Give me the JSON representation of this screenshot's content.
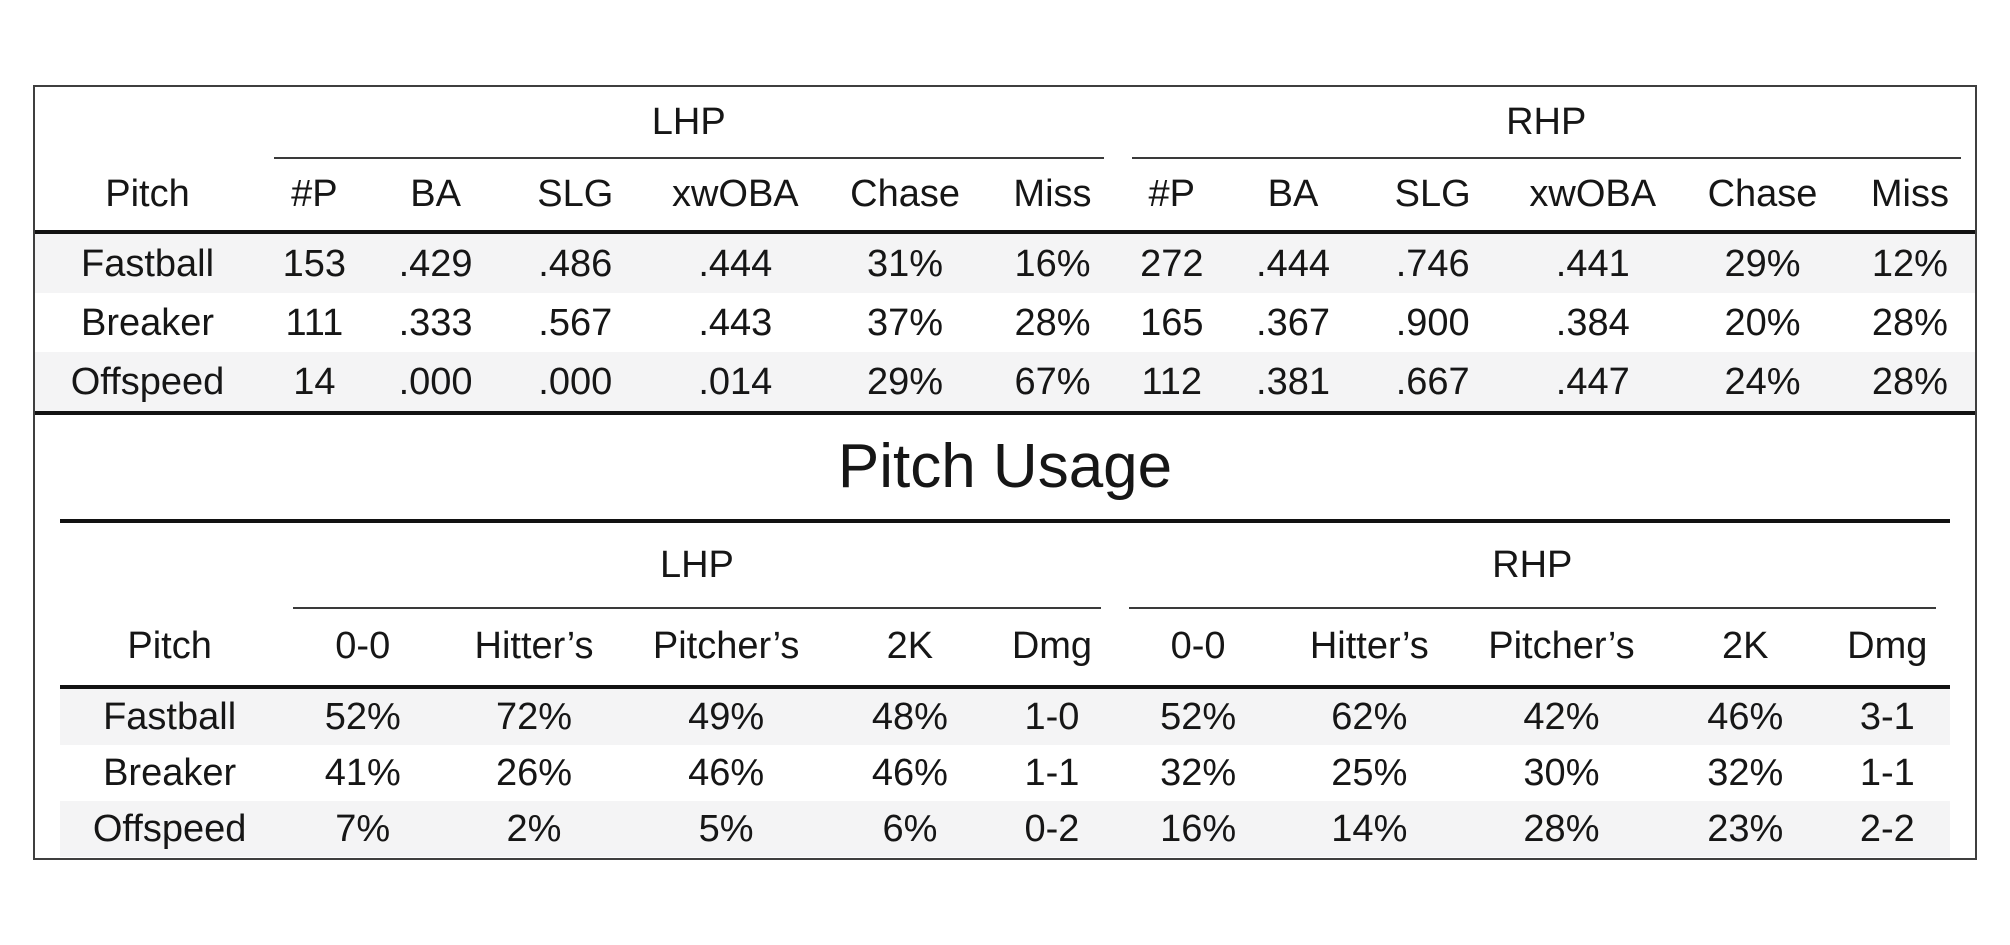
{
  "palette": {
    "text": "#161616",
    "band": "#f4f4f5",
    "rule": "#121212",
    "border": "#3f3f3f",
    "background": "#ffffff"
  },
  "stats_table": {
    "groups": [
      "LHP",
      "RHP"
    ],
    "pitch_header": "Pitch",
    "columns": [
      "#P",
      "BA",
      "SLG",
      "xwOBA",
      "Chase",
      "Miss"
    ],
    "rows": [
      {
        "pitch": "Fastball",
        "lhp": [
          "153",
          ".429",
          ".486",
          ".444",
          "31%",
          "16%"
        ],
        "rhp": [
          "272",
          ".444",
          ".746",
          ".441",
          "29%",
          "12%"
        ]
      },
      {
        "pitch": "Breaker",
        "lhp": [
          "111",
          ".333",
          ".567",
          ".443",
          "37%",
          "28%"
        ],
        "rhp": [
          "165",
          ".367",
          ".900",
          ".384",
          "20%",
          "28%"
        ]
      },
      {
        "pitch": "Offspeed",
        "lhp": [
          "14",
          ".000",
          ".000",
          ".014",
          "29%",
          "67%"
        ],
        "rhp": [
          "112",
          ".381",
          ".667",
          ".447",
          "24%",
          "28%"
        ]
      }
    ]
  },
  "usage_table": {
    "title": "Pitch Usage",
    "groups": [
      "LHP",
      "RHP"
    ],
    "pitch_header": "Pitch",
    "columns": [
      "0-0",
      "Hitter’s",
      "Pitcher’s",
      "2K",
      "Dmg"
    ],
    "rows": [
      {
        "pitch": "Fastball",
        "lhp": [
          "52%",
          "72%",
          "49%",
          "48%",
          "1-0"
        ],
        "rhp": [
          "52%",
          "62%",
          "42%",
          "46%",
          "3-1"
        ]
      },
      {
        "pitch": "Breaker",
        "lhp": [
          "41%",
          "26%",
          "46%",
          "46%",
          "1-1"
        ],
        "rhp": [
          "32%",
          "25%",
          "30%",
          "32%",
          "1-1"
        ]
      },
      {
        "pitch": "Offspeed",
        "lhp": [
          "7%",
          "2%",
          "5%",
          "6%",
          "0-2"
        ],
        "rhp": [
          "16%",
          "14%",
          "28%",
          "23%",
          "2-2"
        ]
      }
    ]
  },
  "chart_data": [
    {
      "type": "table",
      "title": "",
      "column_groups": [
        "LHP",
        "RHP"
      ],
      "columns": [
        "Pitch",
        "#P",
        "BA",
        "SLG",
        "xwOBA",
        "Chase",
        "Miss",
        "#P",
        "BA",
        "SLG",
        "xwOBA",
        "Chase",
        "Miss"
      ],
      "rows": [
        [
          "Fastball",
          "153",
          ".429",
          ".486",
          ".444",
          "31%",
          "16%",
          "272",
          ".444",
          ".746",
          ".441",
          "29%",
          "12%"
        ],
        [
          "Breaker",
          "111",
          ".333",
          ".567",
          ".443",
          "37%",
          "28%",
          "165",
          ".367",
          ".900",
          ".384",
          "20%",
          "28%"
        ],
        [
          "Offspeed",
          "14",
          ".000",
          ".000",
          ".014",
          "29%",
          "67%",
          "112",
          ".381",
          ".667",
          ".447",
          "24%",
          "28%"
        ]
      ]
    },
    {
      "type": "table",
      "title": "Pitch Usage",
      "column_groups": [
        "LHP",
        "RHP"
      ],
      "columns": [
        "Pitch",
        "0-0",
        "Hitter’s",
        "Pitcher’s",
        "2K",
        "Dmg",
        "0-0",
        "Hitter’s",
        "Pitcher’s",
        "2K",
        "Dmg"
      ],
      "rows": [
        [
          "Fastball",
          "52%",
          "72%",
          "49%",
          "48%",
          "1-0",
          "52%",
          "62%",
          "42%",
          "46%",
          "3-1"
        ],
        [
          "Breaker",
          "41%",
          "26%",
          "46%",
          "46%",
          "1-1",
          "32%",
          "25%",
          "30%",
          "32%",
          "1-1"
        ],
        [
          "Offspeed",
          "7%",
          "2%",
          "5%",
          "6%",
          "0-2",
          "16%",
          "14%",
          "28%",
          "23%",
          "2-2"
        ]
      ]
    }
  ]
}
